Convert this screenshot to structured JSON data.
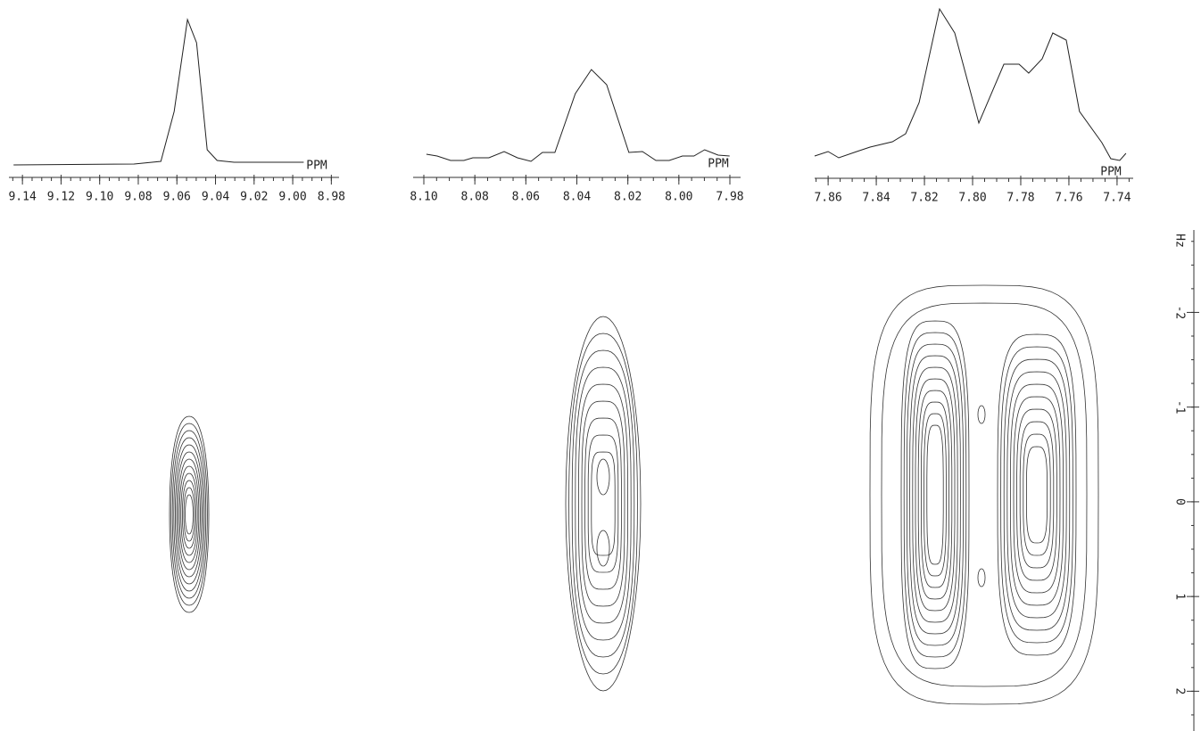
{
  "chart_data": [
    {
      "type": "line",
      "xlabel": "PPM",
      "x": [
        9.1446,
        9.0822,
        9.0683,
        9.0614,
        9.0545,
        9.0498,
        9.0443,
        9.0392,
        9.0304,
        8.9943
      ],
      "values": [
        5,
        6,
        9,
        65,
        168,
        142,
        22,
        10,
        8,
        8
      ],
      "xlim": [
        9.147,
        8.976
      ],
      "ylim": [
        0,
        185
      ],
      "xticks": [
        9.14,
        9.12,
        {
          "value": 9.1,
          "label": "9.10"
        },
        9.08,
        9.06,
        9.04,
        9.02,
        {
          "value": 9,
          "label": "9.00"
        },
        8.98
      ]
    },
    {
      "type": "line",
      "xlabel": "PPM",
      "x": [
        8.099,
        8.0948,
        8.0895,
        8.0843,
        8.0808,
        8.0745,
        8.0685,
        8.0633,
        8.058,
        8.0535,
        8.0486,
        8.0406,
        8.0343,
        8.0283,
        8.0196,
        8.0143,
        8.009,
        8.0038,
        7.9986,
        7.9941,
        7.9899,
        7.9846,
        7.9801
      ],
      "values": [
        17,
        15,
        10,
        10,
        13,
        13,
        20,
        13,
        9,
        19,
        19,
        85,
        112,
        95,
        19,
        20,
        10,
        10,
        15,
        15,
        22,
        16,
        15
      ],
      "xlim": [
        8.1042,
        7.9758
      ],
      "ylim": [
        0,
        185
      ],
      "xticks": [
        {
          "value": 8.1,
          "label": "8.10"
        },
        8.08,
        8.06,
        8.04,
        8.02,
        {
          "value": 8,
          "label": "8.00"
        },
        7.98
      ]
    },
    {
      "type": "line",
      "xlabel": "PPM",
      "x": [
        7.8656,
        7.86,
        7.8556,
        7.8481,
        7.8426,
        7.8333,
        7.8278,
        7.8222,
        7.8137,
        7.8074,
        7.7974,
        7.787,
        7.7807,
        7.7767,
        7.7711,
        7.7667,
        7.7611,
        7.7556,
        7.7463,
        7.7426,
        7.7389,
        7.7363
      ],
      "values": [
        15,
        20,
        13,
        20,
        25,
        31,
        40,
        75,
        180,
        153,
        52,
        118,
        118,
        108,
        124,
        153,
        145,
        65,
        30,
        12,
        10,
        18
      ],
      "xlim": [
        7.8656,
        7.7333
      ],
      "ylim": [
        0,
        185
      ],
      "xticks": [
        7.86,
        7.84,
        7.82,
        {
          "value": 7.8,
          "label": "7.80"
        },
        7.78,
        7.76,
        7.74
      ]
    },
    {
      "type": "contour",
      "ylabel": "Hz",
      "ylim": [
        -2.87,
        2.42
      ],
      "yticks": [
        -2,
        -1,
        0,
        1,
        2
      ]
    }
  ]
}
